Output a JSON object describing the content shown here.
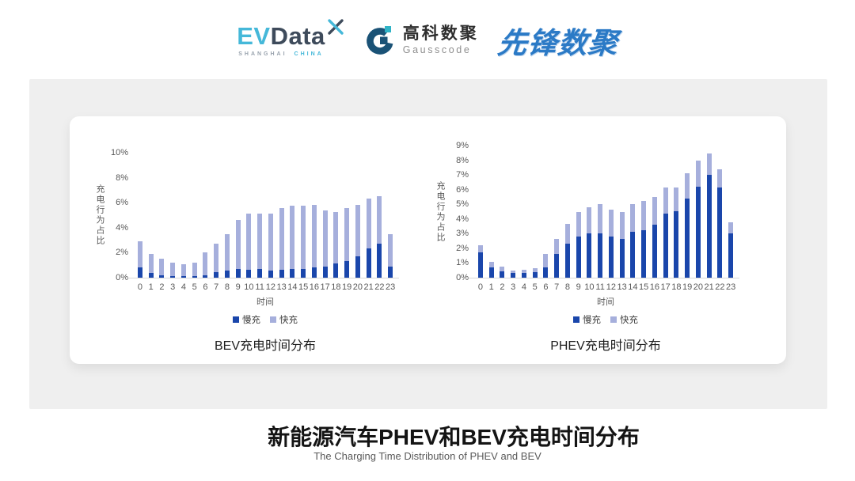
{
  "header": {
    "evdata": {
      "ev": "EV",
      "data": "Data",
      "tagline_left": "SHANGHAI",
      "tagline_right": "CHINA"
    },
    "gausscode": {
      "cn": "高科数聚",
      "en": "Gausscode"
    },
    "xianfeng": {
      "text": "先锋数聚"
    }
  },
  "colors": {
    "slow": "#1A46AB",
    "fast": "#A6AFDC",
    "axis_text": "#595959",
    "axis_line": "#D8D8D8",
    "panel_bg": "#EFEFEF",
    "xianfeng_blue": "#2B7AC6",
    "evdata_cyan": "#45B8D9",
    "evdata_slate": "#3E4B5B"
  },
  "chart_data": [
    {
      "type": "bar",
      "stacked": true,
      "title": "BEV充电时间分布",
      "xlabel": "时间",
      "ylabel": "充电行为占比",
      "grid": false,
      "legend_position": "bottom",
      "categories": [
        "0",
        "1",
        "2",
        "3",
        "4",
        "5",
        "6",
        "7",
        "8",
        "9",
        "10",
        "11",
        "12",
        "13",
        "14",
        "15",
        "16",
        "17",
        "18",
        "19",
        "20",
        "21",
        "22",
        "23"
      ],
      "ylim": [
        0,
        10
      ],
      "ytick_step": 2,
      "ytick_suffix": "%",
      "series": [
        {
          "name": "慢充",
          "color": "#1A46AB",
          "values": [
            0.8,
            0.35,
            0.2,
            0.1,
            0.1,
            0.1,
            0.2,
            0.45,
            0.55,
            0.7,
            0.65,
            0.7,
            0.6,
            0.65,
            0.7,
            0.7,
            0.8,
            0.9,
            1.15,
            1.35,
            1.7,
            2.35,
            2.7,
            0.9
          ]
        },
        {
          "name": "快充",
          "color": "#A6AFDC",
          "values": [
            2.1,
            1.55,
            1.3,
            1.1,
            1.0,
            1.1,
            1.8,
            2.25,
            2.95,
            3.9,
            4.45,
            4.45,
            4.55,
            4.95,
            5.05,
            5.05,
            5.0,
            4.5,
            4.1,
            4.2,
            4.15,
            4.0,
            3.8,
            2.6
          ]
        }
      ]
    },
    {
      "type": "bar",
      "stacked": true,
      "title": "PHEV充电时间分布",
      "xlabel": "时间",
      "ylabel": "充电行为占比",
      "grid": false,
      "legend_position": "bottom",
      "categories": [
        "0",
        "1",
        "2",
        "3",
        "4",
        "5",
        "6",
        "7",
        "8",
        "9",
        "10",
        "11",
        "12",
        "13",
        "14",
        "15",
        "16",
        "17",
        "18",
        "19",
        "20",
        "21",
        "22",
        "23"
      ],
      "ylim": [
        0,
        9
      ],
      "ytick_step": 1,
      "ytick_suffix": "%",
      "series": [
        {
          "name": "慢充",
          "color": "#1A46AB",
          "values": [
            1.7,
            0.7,
            0.45,
            0.3,
            0.3,
            0.4,
            0.7,
            1.6,
            2.3,
            2.8,
            3.0,
            3.0,
            2.8,
            2.65,
            3.1,
            3.25,
            3.6,
            4.35,
            4.55,
            5.4,
            6.2,
            7.0,
            6.15,
            3.0
          ]
        },
        {
          "name": "快充",
          "color": "#A6AFDC",
          "values": [
            0.5,
            0.4,
            0.3,
            0.2,
            0.25,
            0.25,
            0.9,
            1.05,
            1.35,
            1.7,
            1.8,
            2.0,
            1.85,
            1.8,
            1.9,
            2.0,
            1.9,
            1.8,
            1.6,
            1.7,
            1.75,
            1.45,
            1.25,
            0.75
          ]
        }
      ]
    }
  ],
  "footer": {
    "title": "新能源汽车PHEV和BEV充电时间分布",
    "subtitle": "The Charging Time Distribution of PHEV and BEV"
  }
}
